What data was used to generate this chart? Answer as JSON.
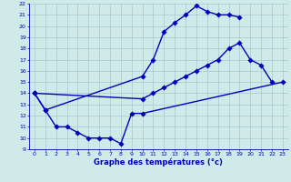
{
  "xlabel": "Graphe des températures (°c)",
  "x_hours": [
    0,
    1,
    2,
    3,
    4,
    5,
    6,
    7,
    8,
    9,
    10,
    11,
    12,
    13,
    14,
    15,
    16,
    17,
    18,
    19,
    20,
    21,
    22,
    23
  ],
  "line1": [
    14.0,
    12.5,
    null,
    null,
    null,
    null,
    null,
    null,
    null,
    null,
    15.5,
    17.0,
    19.5,
    20.3,
    21.0,
    21.8,
    21.3,
    21.0,
    21.0,
    20.8,
    null,
    null,
    null,
    null
  ],
  "line2": [
    14.0,
    null,
    null,
    null,
    null,
    null,
    null,
    null,
    null,
    null,
    13.5,
    14.0,
    14.5,
    15.0,
    15.5,
    16.0,
    16.5,
    17.0,
    18.0,
    18.5,
    17.0,
    16.5,
    15.0,
    null
  ],
  "line3": [
    14.0,
    12.5,
    11.0,
    11.0,
    10.5,
    10.0,
    10.0,
    10.0,
    9.5,
    12.2,
    12.2,
    null,
    null,
    null,
    null,
    null,
    null,
    null,
    null,
    null,
    null,
    null,
    null,
    15.0
  ],
  "ylim": [
    9,
    22
  ],
  "xlim": [
    -0.5,
    23.5
  ],
  "yticks": [
    9,
    10,
    11,
    12,
    13,
    14,
    15,
    16,
    17,
    18,
    19,
    20,
    21,
    22
  ],
  "xticks": [
    0,
    1,
    2,
    3,
    4,
    5,
    6,
    7,
    8,
    9,
    10,
    11,
    12,
    13,
    14,
    15,
    16,
    17,
    18,
    19,
    20,
    21,
    22,
    23
  ],
  "line_color": "#0000bb",
  "bg_color": "#d0eaea",
  "grid_color": "#a8c8cc",
  "tick_color": "#0000bb",
  "label_color": "#0000bb",
  "markersize": 2.8,
  "linewidth": 1.0
}
